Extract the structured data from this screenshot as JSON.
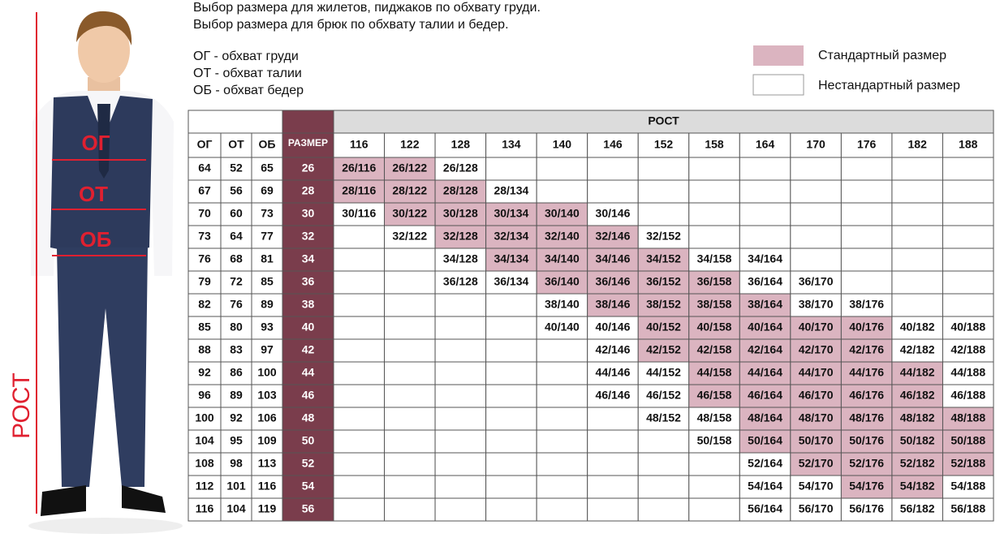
{
  "header": {
    "lines": [
      "Выбор размера для жилетов, пиджаков по обхвату груди.",
      "Выбор размера для брюк по обхвату талии и бедер."
    ]
  },
  "abbreviations": [
    "ОГ - обхват груди",
    "ОТ - обхват талии",
    "ОБ - обхват бедер"
  ],
  "legend": [
    {
      "label": "Стандартный размер",
      "color": "#dbb4c0"
    },
    {
      "label": "Нестандартный размер",
      "color": "#ffffff"
    }
  ],
  "figure": {
    "chest": "ОГ",
    "waist": "ОТ",
    "hips": "ОБ",
    "height": "РОСТ"
  },
  "table": {
    "columns": [
      "ОГ",
      "ОТ",
      "ОБ",
      "РАЗМЕР"
    ],
    "height_header": "РОСТ",
    "size_color": "#7a3d4c",
    "heights": [
      116,
      122,
      128,
      134,
      140,
      146,
      152,
      158,
      164,
      170,
      176,
      182,
      188
    ],
    "rows": [
      {
        "og": 64,
        "ot": 52,
        "ob": 65,
        "size": 26,
        "cells": [
          {
            "text": "26/116",
            "standard": true
          },
          {
            "text": "26/122",
            "standard": true
          },
          {
            "text": "26/128",
            "standard": false
          },
          null,
          null,
          null,
          null,
          null,
          null,
          null,
          null,
          null,
          null
        ]
      },
      {
        "og": 67,
        "ot": 56,
        "ob": 69,
        "size": 28,
        "cells": [
          {
            "text": "28/116",
            "standard": true
          },
          {
            "text": "28/122",
            "standard": true
          },
          {
            "text": "28/128",
            "standard": true
          },
          {
            "text": "28/134",
            "standard": false
          },
          null,
          null,
          null,
          null,
          null,
          null,
          null,
          null,
          null
        ]
      },
      {
        "og": 70,
        "ot": 60,
        "ob": 73,
        "size": 30,
        "cells": [
          {
            "text": "30/116",
            "standard": false
          },
          {
            "text": "30/122",
            "standard": true
          },
          {
            "text": "30/128",
            "standard": true
          },
          {
            "text": "30/134",
            "standard": true
          },
          {
            "text": "30/140",
            "standard": true
          },
          {
            "text": "30/146",
            "standard": false
          },
          null,
          null,
          null,
          null,
          null,
          null,
          null
        ]
      },
      {
        "og": 73,
        "ot": 64,
        "ob": 77,
        "size": 32,
        "cells": [
          null,
          {
            "text": "32/122",
            "standard": false
          },
          {
            "text": "32/128",
            "standard": true
          },
          {
            "text": "32/134",
            "standard": true
          },
          {
            "text": "32/140",
            "standard": true
          },
          {
            "text": "32/146",
            "standard": true
          },
          {
            "text": "32/152",
            "standard": false
          },
          null,
          null,
          null,
          null,
          null,
          null
        ]
      },
      {
        "og": 76,
        "ot": 68,
        "ob": 81,
        "size": 34,
        "cells": [
          null,
          null,
          {
            "text": "34/128",
            "standard": false
          },
          {
            "text": "34/134",
            "standard": true
          },
          {
            "text": "34/140",
            "standard": true
          },
          {
            "text": "34/146",
            "standard": true
          },
          {
            "text": "34/152",
            "standard": true
          },
          {
            "text": "34/158",
            "standard": false
          },
          {
            "text": "34/164",
            "standard": false
          },
          null,
          null,
          null,
          null
        ]
      },
      {
        "og": 79,
        "ot": 72,
        "ob": 85,
        "size": 36,
        "cells": [
          null,
          null,
          {
            "text": "36/128",
            "standard": false
          },
          {
            "text": "36/134",
            "standard": false
          },
          {
            "text": "36/140",
            "standard": true
          },
          {
            "text": "36/146",
            "standard": true
          },
          {
            "text": "36/152",
            "standard": true
          },
          {
            "text": "36/158",
            "standard": true
          },
          {
            "text": "36/164",
            "standard": false
          },
          {
            "text": "36/170",
            "standard": false
          },
          null,
          null,
          null
        ]
      },
      {
        "og": 82,
        "ot": 76,
        "ob": 89,
        "size": 38,
        "cells": [
          null,
          null,
          null,
          null,
          {
            "text": "38/140",
            "standard": false
          },
          {
            "text": "38/146",
            "standard": true
          },
          {
            "text": "38/152",
            "standard": true
          },
          {
            "text": "38/158",
            "standard": true
          },
          {
            "text": "38/164",
            "standard": true
          },
          {
            "text": "38/170",
            "standard": false
          },
          {
            "text": "38/176",
            "standard": false
          },
          null,
          null
        ]
      },
      {
        "og": 85,
        "ot": 80,
        "ob": 93,
        "size": 40,
        "cells": [
          null,
          null,
          null,
          null,
          {
            "text": "40/140",
            "standard": false
          },
          {
            "text": "40/146",
            "standard": false
          },
          {
            "text": "40/152",
            "standard": true
          },
          {
            "text": "40/158",
            "standard": true
          },
          {
            "text": "40/164",
            "standard": true
          },
          {
            "text": "40/170",
            "standard": true
          },
          {
            "text": "40/176",
            "standard": true
          },
          {
            "text": "40/182",
            "standard": false
          },
          {
            "text": "40/188",
            "standard": false
          }
        ]
      },
      {
        "og": 88,
        "ot": 83,
        "ob": 97,
        "size": 42,
        "cells": [
          null,
          null,
          null,
          null,
          null,
          {
            "text": "42/146",
            "standard": false
          },
          {
            "text": "42/152",
            "standard": true
          },
          {
            "text": "42/158",
            "standard": true
          },
          {
            "text": "42/164",
            "standard": true
          },
          {
            "text": "42/170",
            "standard": true
          },
          {
            "text": "42/176",
            "standard": true
          },
          {
            "text": "42/182",
            "standard": false
          },
          {
            "text": "42/188",
            "standard": false
          }
        ]
      },
      {
        "og": 92,
        "ot": 86,
        "ob": 100,
        "size": 44,
        "cells": [
          null,
          null,
          null,
          null,
          null,
          {
            "text": "44/146",
            "standard": false
          },
          {
            "text": "44/152",
            "standard": false
          },
          {
            "text": "44/158",
            "standard": true
          },
          {
            "text": "44/164",
            "standard": true
          },
          {
            "text": "44/170",
            "standard": true
          },
          {
            "text": "44/176",
            "standard": true
          },
          {
            "text": "44/182",
            "standard": true
          },
          {
            "text": "44/188",
            "standard": false
          }
        ]
      },
      {
        "og": 96,
        "ot": 89,
        "ob": 103,
        "size": 46,
        "cells": [
          null,
          null,
          null,
          null,
          null,
          {
            "text": "46/146",
            "standard": false
          },
          {
            "text": "46/152",
            "standard": false
          },
          {
            "text": "46/158",
            "standard": true
          },
          {
            "text": "46/164",
            "standard": true
          },
          {
            "text": "46/170",
            "standard": true
          },
          {
            "text": "46/176",
            "standard": true
          },
          {
            "text": "46/182",
            "standard": true
          },
          {
            "text": "46/188",
            "standard": false
          }
        ]
      },
      {
        "og": 100,
        "ot": 92,
        "ob": 106,
        "size": 48,
        "cells": [
          null,
          null,
          null,
          null,
          null,
          null,
          {
            "text": "48/152",
            "standard": false
          },
          {
            "text": "48/158",
            "standard": false
          },
          {
            "text": "48/164",
            "standard": true
          },
          {
            "text": "48/170",
            "standard": true
          },
          {
            "text": "48/176",
            "standard": true
          },
          {
            "text": "48/182",
            "standard": true
          },
          {
            "text": "48/188",
            "standard": true
          }
        ]
      },
      {
        "og": 104,
        "ot": 95,
        "ob": 109,
        "size": 50,
        "cells": [
          null,
          null,
          null,
          null,
          null,
          null,
          null,
          {
            "text": "50/158",
            "standard": false
          },
          {
            "text": "50/164",
            "standard": true
          },
          {
            "text": "50/170",
            "standard": true
          },
          {
            "text": "50/176",
            "standard": true
          },
          {
            "text": "50/182",
            "standard": true
          },
          {
            "text": "50/188",
            "standard": true
          }
        ]
      },
      {
        "og": 108,
        "ot": 98,
        "ob": 113,
        "size": 52,
        "cells": [
          null,
          null,
          null,
          null,
          null,
          null,
          null,
          null,
          {
            "text": "52/164",
            "standard": false
          },
          {
            "text": "52/170",
            "standard": true
          },
          {
            "text": "52/176",
            "standard": true
          },
          {
            "text": "52/182",
            "standard": true
          },
          {
            "text": "52/188",
            "standard": true
          }
        ]
      },
      {
        "og": 112,
        "ot": 101,
        "ob": 116,
        "size": 54,
        "cells": [
          null,
          null,
          null,
          null,
          null,
          null,
          null,
          null,
          {
            "text": "54/164",
            "standard": false
          },
          {
            "text": "54/170",
            "standard": false
          },
          {
            "text": "54/176",
            "standard": true
          },
          {
            "text": "54/182",
            "standard": true
          },
          {
            "text": "54/188",
            "standard": false
          }
        ]
      },
      {
        "og": 116,
        "ot": 104,
        "ob": 119,
        "size": 56,
        "cells": [
          null,
          null,
          null,
          null,
          null,
          null,
          null,
          null,
          {
            "text": "56/164",
            "standard": false
          },
          {
            "text": "56/170",
            "standard": false
          },
          {
            "text": "56/176",
            "standard": false
          },
          {
            "text": "56/182",
            "standard": false
          },
          {
            "text": "56/188",
            "standard": false
          }
        ]
      }
    ]
  }
}
